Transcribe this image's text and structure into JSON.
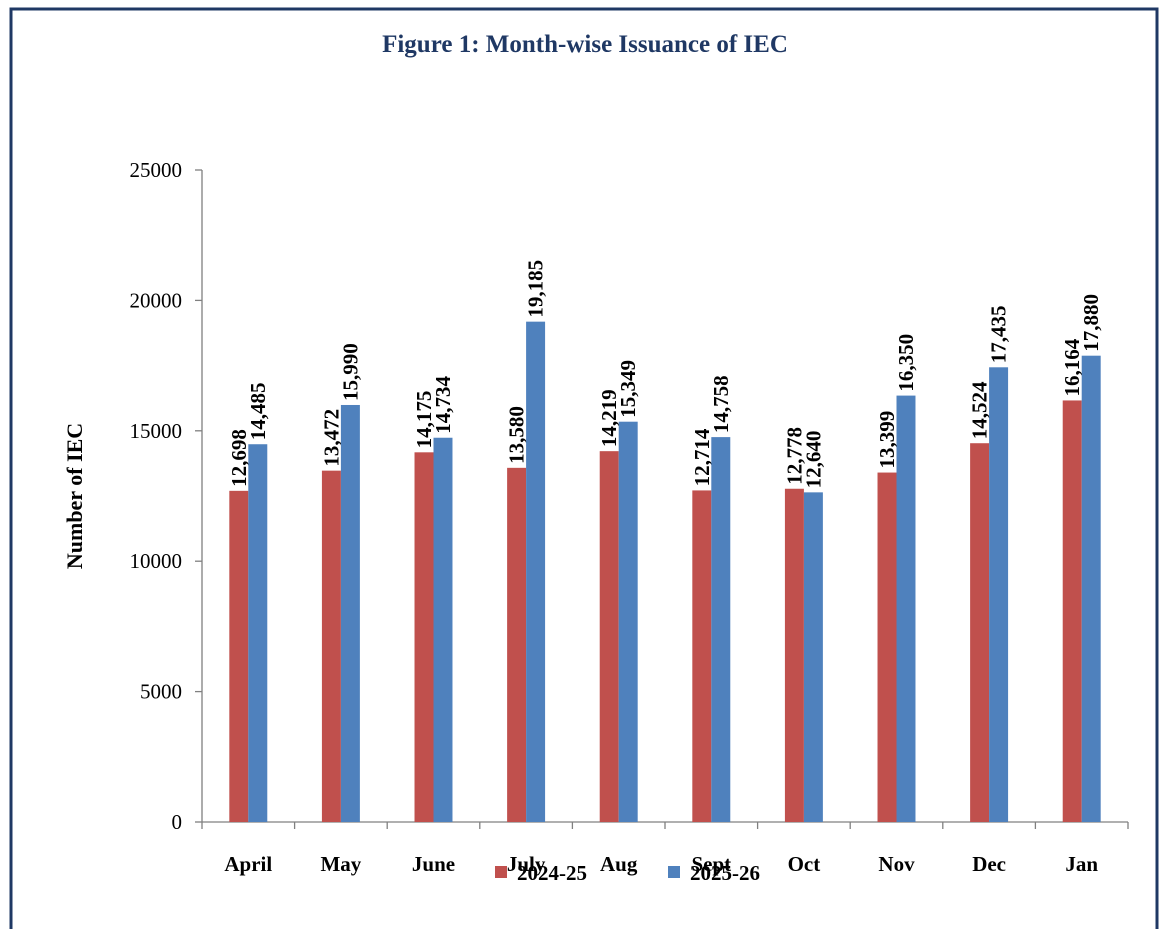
{
  "chart_data": {
    "type": "bar",
    "title": "Figure 1: Month-wise Issuance of IEC",
    "y_label": "Number of IEC",
    "categories": [
      "April",
      "May",
      "June",
      "July",
      "Aug",
      "Sept",
      "Oct",
      "Nov",
      "Dec",
      "Jan"
    ],
    "series": [
      {
        "name": "2024-25",
        "color": "#c0504d",
        "values": [
          12698,
          13472,
          14175,
          13580,
          14219,
          12714,
          12778,
          13399,
          14524,
          16164
        ],
        "value_labels": [
          "12,698",
          "13,472",
          "14,175",
          "13,580",
          "14,219",
          "12,714",
          "12,778",
          "13,399",
          "14,524",
          "16,164"
        ]
      },
      {
        "name": "2025-26",
        "color": "#4f81bd",
        "values": [
          14485,
          15990,
          14734,
          19185,
          15349,
          14758,
          12640,
          16350,
          17435,
          17880
        ],
        "value_labels": [
          "14,485",
          "15,990",
          "14,734",
          "19,185",
          "15,349",
          "14,758",
          "12,640",
          "16,350",
          "17,435",
          "17,880"
        ]
      }
    ],
    "ylim": [
      0,
      25000
    ],
    "yticks": [
      0,
      5000,
      10000,
      15000,
      20000,
      25000
    ],
    "legend": "bottom"
  }
}
